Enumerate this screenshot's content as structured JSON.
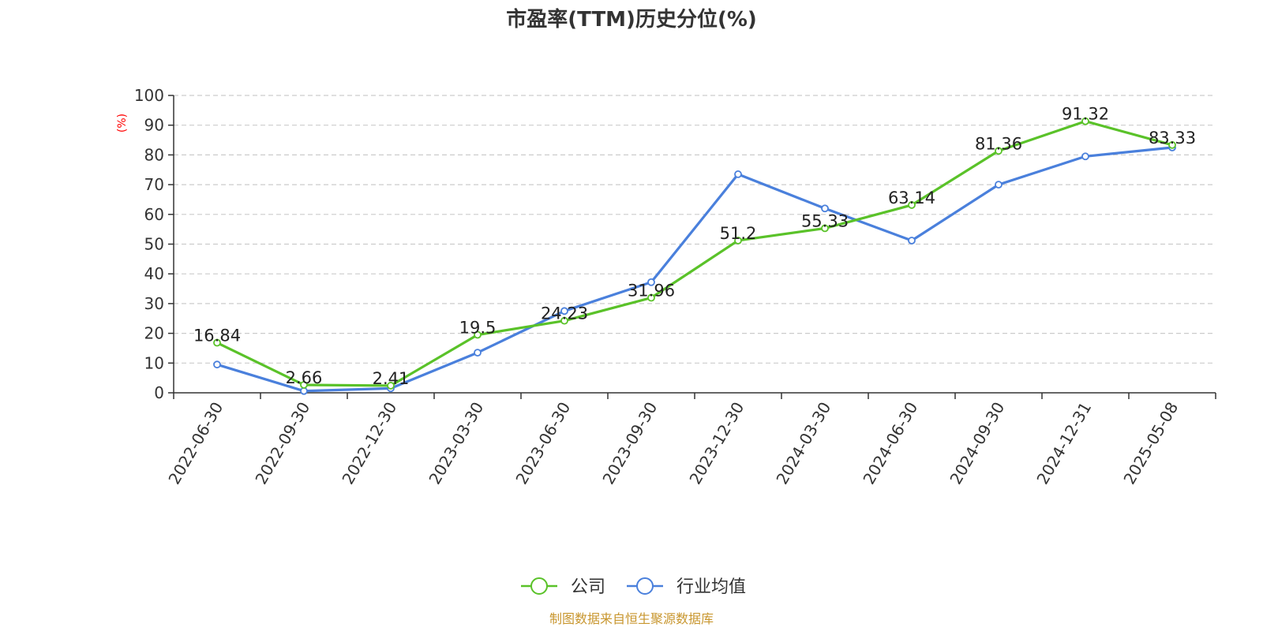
{
  "chart_data": {
    "type": "line",
    "title": "市盈率(TTM)历史分位(%)",
    "ylabel": "(%)",
    "ylim": [
      0,
      100
    ],
    "yticks": [
      0,
      10,
      20,
      30,
      40,
      50,
      60,
      70,
      80,
      90,
      100
    ],
    "grid": true,
    "legend_position": "bottom",
    "categories": [
      "2022-06-30",
      "2022-09-30",
      "2022-12-30",
      "2023-03-30",
      "2023-06-30",
      "2023-09-30",
      "2023-12-30",
      "2024-03-30",
      "2024-06-30",
      "2024-09-30",
      "2024-12-31",
      "2025-05-08"
    ],
    "series": [
      {
        "name": "公司",
        "color": "#5ac229",
        "values": [
          16.84,
          2.66,
          2.41,
          19.5,
          24.23,
          31.96,
          51.2,
          55.33,
          63.14,
          81.36,
          91.32,
          83.33
        ],
        "labels": [
          "16.84",
          "2.66",
          "2.41",
          "19.5",
          "24.23",
          "31.96",
          "51.2",
          "55.33",
          "63.14",
          "81.36",
          "91.32",
          "83.33"
        ]
      },
      {
        "name": "行业均值",
        "color": "#4a80dc",
        "values": [
          9.5,
          0.6,
          1.5,
          13.5,
          27.5,
          37.2,
          73.5,
          62,
          51.2,
          70,
          79.5,
          82.5
        ]
      }
    ],
    "source": "制图数据来自恒生聚源数据库"
  }
}
